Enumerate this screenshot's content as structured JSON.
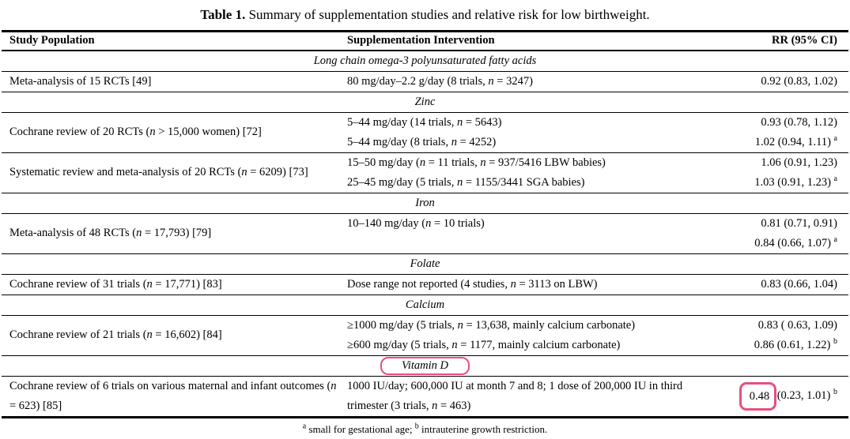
{
  "page": {
    "title_bold": "Table 1.",
    "title_rest": "Summary of supplementation studies and relative risk for low birthweight."
  },
  "table": {
    "annotation_color": "#e84f7d",
    "columns": [
      {
        "label": "Study Population"
      },
      {
        "label": "Supplementation Intervention"
      },
      {
        "label": "RR (95% CI)"
      }
    ],
    "sections": [
      {
        "name": "Long chain omega-3 polyunsaturated fatty acids",
        "annotated": false,
        "groups": [
          {
            "population": "Meta-analysis of 15 RCTs [49]",
            "rows": [
              {
                "intervention": "80 mg/day–2.2 g/day (8 trials, n = 3247)",
                "rr": "0.92 (0.83, 1.02)",
                "rr_sup": ""
              }
            ]
          }
        ]
      },
      {
        "name": "Zinc",
        "annotated": false,
        "groups": [
          {
            "population": "Cochrane review of 20 RCTs (n > 15,000 women) [72]",
            "rows": [
              {
                "intervention": "5–44 mg/day (14 trials, n = 5643)",
                "rr": "0.93 (0.78, 1.12)",
                "rr_sup": ""
              },
              {
                "intervention": "5–44 mg/day (8 trials, n = 4252)",
                "rr": "1.02 (0.94, 1.11)",
                "rr_sup": "a"
              }
            ]
          },
          {
            "population": "Systematic review and meta-analysis of 20 RCTs (n = 6209) [73]",
            "rows": [
              {
                "intervention": "15–50 mg/day (n = 11 trials, n = 937/5416 LBW babies)",
                "rr": "1.06 (0.91, 1.23)",
                "rr_sup": ""
              },
              {
                "intervention": "25–45 mg/day (5 trials, n = 1155/3441 SGA babies)",
                "rr": "1.03 (0.91, 1.23)",
                "rr_sup": "a"
              }
            ]
          }
        ]
      },
      {
        "name": "Iron",
        "annotated": false,
        "groups": [
          {
            "population": "Meta-analysis of 48 RCTs (n = 17,793) [79]",
            "rows": [
              {
                "intervention": "10–140 mg/day (n = 10 trials)",
                "rr": "0.81 (0.71, 0.91)",
                "rr_sup": ""
              },
              {
                "intervention": "",
                "rr": "0.84 (0.66, 1.07)",
                "rr_sup": "a"
              }
            ]
          }
        ]
      },
      {
        "name": "Folate",
        "annotated": false,
        "groups": [
          {
            "population": "Cochrane review of 31 trials (n = 17,771) [83]",
            "rows": [
              {
                "intervention": "Dose range not reported (4 studies, n = 3113 on LBW)",
                "rr": "0.83 (0.66, 1.04)",
                "rr_sup": ""
              }
            ]
          }
        ]
      },
      {
        "name": "Calcium",
        "annotated": false,
        "groups": [
          {
            "population": "Cochrane review of 21 trials (n = 16,602) [84]",
            "rows": [
              {
                "intervention": "≥1000 mg/day (5 trials, n = 13,638, mainly calcium carbonate)",
                "rr": "0.83 ( 0.63, 1.09)",
                "rr_sup": ""
              },
              {
                "intervention": "≥600 mg/day (5 trials, n = 1177, mainly calcium carbonate)",
                "rr": "0.86 (0.61, 1.22)",
                "rr_sup": "b"
              }
            ]
          }
        ]
      },
      {
        "name": "Vitamin D",
        "annotated": true,
        "groups": [
          {
            "population": "Cochrane review of 6 trials on various maternal and infant outcomes (n = 623) [85]",
            "rows": [
              {
                "intervention": "1000 IU/day; 600,000 IU at month 7 and 8; 1 dose of 200,000 IU in third trimester (3 trials, n = 463)",
                "rr_boxed": "0.48",
                "rr": "(0.23, 1.01)",
                "rr_sup": "b"
              }
            ]
          }
        ]
      }
    ],
    "footnotes": [
      {
        "sup": "a",
        "text": "small for gestational age;"
      },
      {
        "sup": "b",
        "text": "intrauterine growth restriction."
      }
    ]
  }
}
